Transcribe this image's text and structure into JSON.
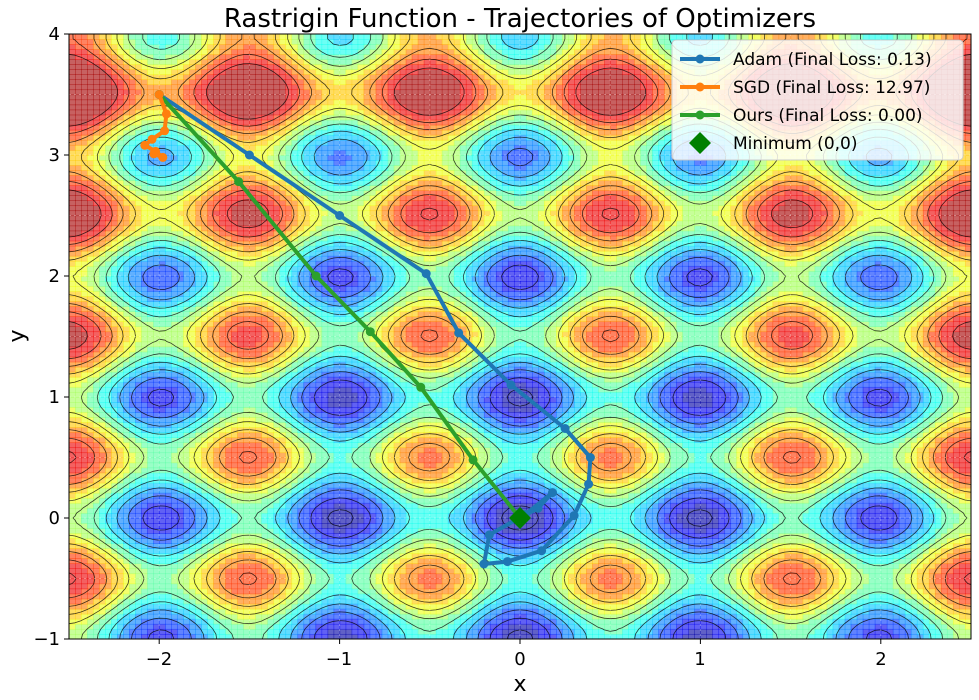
{
  "chart_data": {
    "type": "line",
    "title": "Rastrigin Function - Trajectories of Optimizers",
    "xlabel": "x",
    "ylabel": "y",
    "xlim": [
      -2.5,
      2.5
    ],
    "ylim": [
      -1,
      4
    ],
    "xticks": [
      -2,
      -1,
      0,
      1,
      2
    ],
    "yticks": [
      -1,
      0,
      1,
      2,
      3,
      4
    ],
    "xtick_labels": [
      "−2",
      "−1",
      "0",
      "1",
      "2"
    ],
    "ytick_labels": [
      "−1",
      "0",
      "1",
      "2",
      "3",
      "4"
    ],
    "grid": true,
    "background": {
      "type": "contour",
      "function": "rastrigin",
      "colormap": "jet"
    },
    "legend_position": "top-right",
    "series": [
      {
        "name": "Adam",
        "label": "Adam (Final Loss: 0.13)",
        "color": "#1f77b4",
        "x": [
          -2.0,
          -1.5,
          -1.0,
          -0.52,
          -0.34,
          -0.05,
          0.25,
          0.39,
          0.38,
          0.3,
          0.12,
          -0.07,
          -0.2,
          -0.17,
          0.03,
          0.18,
          0.1,
          0.0
        ],
        "y": [
          3.5,
          3.0,
          2.5,
          2.02,
          1.53,
          1.1,
          0.74,
          0.5,
          0.28,
          0.02,
          -0.27,
          -0.36,
          -0.38,
          -0.14,
          0.03,
          0.21,
          0.08,
          0.0
        ]
      },
      {
        "name": "SGD",
        "label": "SGD (Final Loss: 12.97)",
        "color": "#ff7f0e",
        "x": [
          -2.0,
          -1.96,
          -1.97,
          -2.04,
          -2.08,
          -2.02,
          -1.98,
          -2.03
        ],
        "y": [
          3.5,
          3.34,
          3.2,
          3.13,
          3.08,
          3.03,
          2.98,
          3.01
        ]
      },
      {
        "name": "Ours",
        "label": "Ours (Final Loss: 0.00)",
        "color": "#2ca02c",
        "x": [
          -2.0,
          -1.56,
          -1.13,
          -0.83,
          -0.55,
          -0.26,
          0.0
        ],
        "y": [
          3.5,
          2.78,
          2.0,
          1.54,
          1.08,
          0.48,
          0.0
        ]
      }
    ],
    "annotations": [
      {
        "name": "Minimum",
        "label": "Minimum (0,0)",
        "x": 0,
        "y": 0,
        "marker": "diamond",
        "color": "#008000"
      }
    ]
  }
}
